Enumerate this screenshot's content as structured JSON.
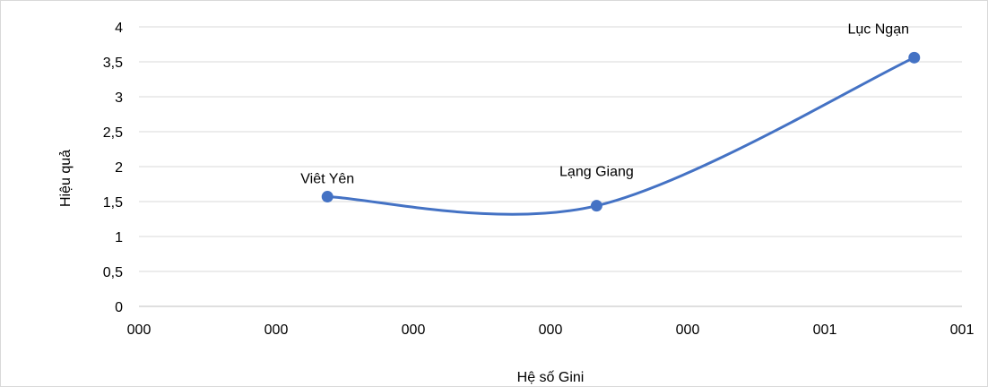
{
  "chart_data": {
    "type": "line",
    "smooth": true,
    "xlabel": "Hệ số Gini",
    "ylabel": "Hiệu quả",
    "y_ticks": [
      "0",
      "0,5",
      "1",
      "1,5",
      "2",
      "2,5",
      "3",
      "3,5",
      "4"
    ],
    "x_ticks": [
      "000",
      "000",
      "000",
      "000",
      "000",
      "001",
      "001"
    ],
    "ylim": [
      0,
      4
    ],
    "grid": true,
    "line_color": "#4472c4",
    "series": [
      {
        "points": [
          {
            "label": "Viêt Yên",
            "x_fraction": 0.229,
            "y": 1.57
          },
          {
            "label": "Lạng Giang",
            "x_fraction": 0.556,
            "y": 1.44
          },
          {
            "label": "Lục Ngạn",
            "x_fraction": 0.942,
            "y": 3.56
          }
        ]
      }
    ]
  }
}
